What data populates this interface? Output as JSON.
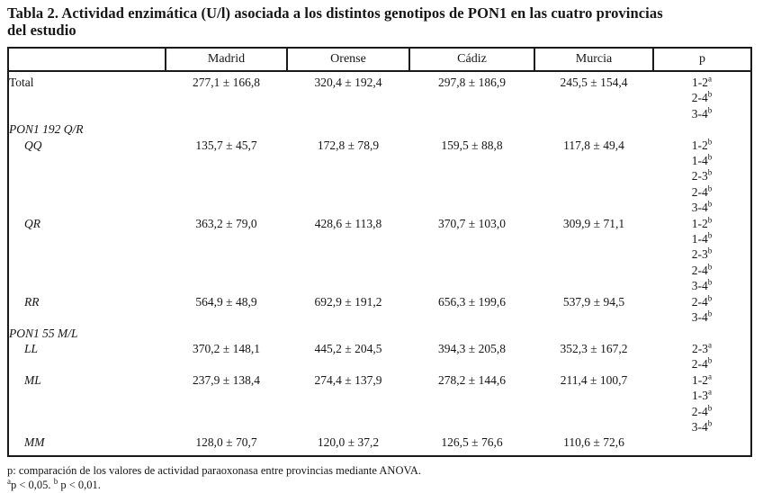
{
  "title": {
    "line1": "Tabla 2. Actividad enzimática (U/l) asociada a los distintos genotipos de PON1 en las cuatro provincias",
    "line2": "del estudio"
  },
  "table": {
    "columns": [
      {
        "key": "rowlabel",
        "label": ""
      },
      {
        "key": "madrid",
        "label": "Madrid"
      },
      {
        "key": "orense",
        "label": "Orense"
      },
      {
        "key": "cadiz",
        "label": "Cádiz"
      },
      {
        "key": "murcia",
        "label": "Murcia"
      },
      {
        "key": "p",
        "label": "p"
      }
    ],
    "rows": [
      {
        "type": "data",
        "label": "Total",
        "label_style": "plain",
        "values": [
          "277,1 ± 166,8",
          "320,4 ± 192,4",
          "297,8 ± 186,9",
          "245,5 ± 154,4"
        ],
        "p": [
          {
            "text": "1-2",
            "sup": "a"
          },
          {
            "text": "2-4",
            "sup": "b"
          },
          {
            "text": "3-4",
            "sup": "b"
          }
        ]
      },
      {
        "type": "section",
        "label": "PON1 192 Q/R"
      },
      {
        "type": "data",
        "label": "QQ",
        "label_style": "genotype",
        "values": [
          "135,7 ± 45,7",
          "172,8 ± 78,9",
          "159,5 ± 88,8",
          "117,8 ± 49,4"
        ],
        "p": [
          {
            "text": "1-2",
            "sup": "b"
          },
          {
            "text": "1-4",
            "sup": "b"
          },
          {
            "text": "2-3",
            "sup": "b"
          },
          {
            "text": "2-4",
            "sup": "b"
          },
          {
            "text": "3-4",
            "sup": "b"
          }
        ]
      },
      {
        "type": "data",
        "label": "QR",
        "label_style": "genotype",
        "values": [
          "363,2 ± 79,0",
          "428,6 ± 113,8",
          "370,7 ± 103,0",
          "309,9 ± 71,1"
        ],
        "p": [
          {
            "text": "1-2",
            "sup": "b"
          },
          {
            "text": "1-4",
            "sup": "b"
          },
          {
            "text": "2-3",
            "sup": "b"
          },
          {
            "text": "2-4",
            "sup": "b"
          },
          {
            "text": "3-4",
            "sup": "b"
          }
        ]
      },
      {
        "type": "data",
        "label": "RR",
        "label_style": "genotype",
        "values": [
          "564,9 ± 48,9",
          "692,9 ± 191,2",
          "656,3 ± 199,6",
          "537,9 ± 94,5"
        ],
        "p": [
          {
            "text": "2-4",
            "sup": "b"
          },
          {
            "text": "3-4",
            "sup": "b"
          }
        ]
      },
      {
        "type": "section",
        "label": "PON1 55 M/L"
      },
      {
        "type": "data",
        "label": "LL",
        "label_style": "genotype",
        "values": [
          "370,2 ± 148,1",
          "445,2 ± 204,5",
          "394,3 ± 205,8",
          "352,3 ± 167,2"
        ],
        "p": [
          {
            "text": "2-3",
            "sup": "a"
          },
          {
            "text": "2-4",
            "sup": "b"
          }
        ]
      },
      {
        "type": "data",
        "label": "ML",
        "label_style": "genotype",
        "values": [
          "237,9 ± 138,4",
          "274,4 ± 137,9",
          "278,2 ± 144,6",
          "211,4 ± 100,7"
        ],
        "p": [
          {
            "text": "1-2",
            "sup": "a"
          },
          {
            "text": "1-3",
            "sup": "a"
          },
          {
            "text": "2-4",
            "sup": "b"
          },
          {
            "text": "3-4",
            "sup": "b"
          }
        ]
      },
      {
        "type": "data",
        "label": "MM",
        "label_style": "genotype",
        "values": [
          "128,0 ± 70,7",
          "120,0 ± 37,2",
          "126,5 ± 76,6",
          "110,6 ± 72,6"
        ],
        "p": []
      }
    ]
  },
  "footnotes": {
    "line1": "p: comparación de los valores de actividad paraoxonasa entre provincias mediante ANOVA.",
    "line2": [
      {
        "sup": "a",
        "text": "p < 0,05. "
      },
      {
        "sup": "b",
        "text": " p < 0,01."
      }
    ]
  },
  "colors": {
    "background": "#ffffff",
    "text": "#161616",
    "border": "#1a1a1a"
  }
}
